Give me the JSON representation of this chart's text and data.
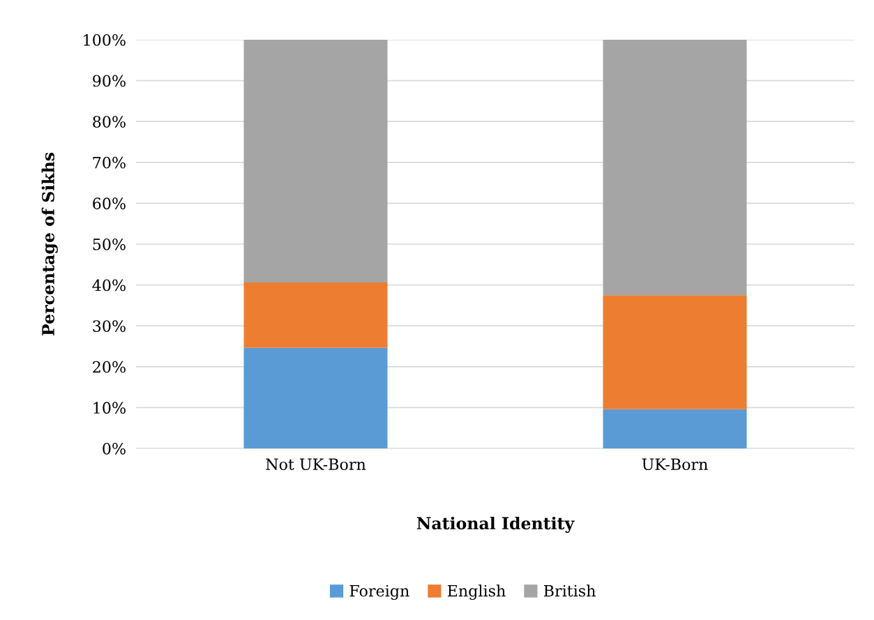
{
  "chart_data": {
    "type": "bar",
    "stacked": true,
    "xlabel": "National Identity",
    "ylabel": "Percentage of Sikhs",
    "categories": [
      "Not UK-Born",
      "UK-Born"
    ],
    "series": [
      {
        "name": "Foreign",
        "color": "#5b9bd5",
        "values": [
          24.6,
          9.6
        ]
      },
      {
        "name": "English",
        "color": "#ed7d31",
        "values": [
          16.0,
          27.9
        ]
      },
      {
        "name": "British",
        "color": "#a5a5a5",
        "values": [
          59.4,
          62.5
        ]
      }
    ],
    "ylim": [
      0,
      100
    ],
    "yticks": [
      {
        "value": 0,
        "label": "0%"
      },
      {
        "value": 10,
        "label": "10%"
      },
      {
        "value": 20,
        "label": "20%"
      },
      {
        "value": 30,
        "label": "30%"
      },
      {
        "value": 40,
        "label": "40%"
      },
      {
        "value": 50,
        "label": "50%"
      },
      {
        "value": 60,
        "label": "60%"
      },
      {
        "value": 70,
        "label": "70%"
      },
      {
        "value": 80,
        "label": "80%"
      },
      {
        "value": 90,
        "label": "90%"
      },
      {
        "value": 100,
        "label": "100%"
      }
    ],
    "grid": "y",
    "legend": "bottom"
  }
}
